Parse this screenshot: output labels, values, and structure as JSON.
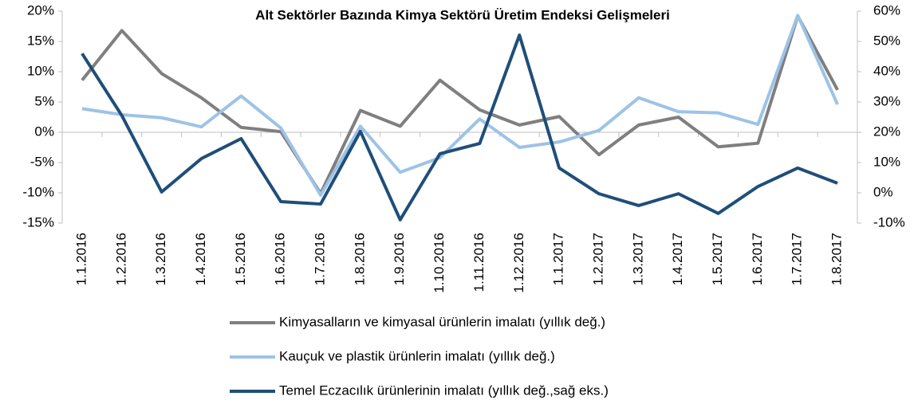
{
  "chart_data": {
    "type": "line",
    "title": "Alt Sektörler Bazında Kimya Sektörü Üretim Endeksi Gelişmeleri",
    "categories": [
      "1.1.2016",
      "1.2.2016",
      "1.3.2016",
      "1.4.2016",
      "1.5.2016",
      "1.6.2016",
      "1.7.2016",
      "1.8.2016",
      "1.9.2016",
      "1.10.2016",
      "1.11.2016",
      "1.12.2016",
      "1.1.2017",
      "1.2.2017",
      "1.3.2017",
      "1.4.2017",
      "1.5.2017",
      "1.6.2017",
      "1.7.2017",
      "1.8.2017"
    ],
    "series": [
      {
        "name": "Kimyasalların ve kimyasal ürünlerin imalatı (yıllık değ.)",
        "color": "#7f7f7f",
        "values": [
          8.6,
          16.8,
          9.7,
          5.7,
          0.8,
          0.1,
          -10.1,
          3.6,
          1.0,
          8.6,
          3.7,
          1.2,
          2.6,
          -3.7,
          1.2,
          2.5,
          -2.4,
          -1.8,
          19.2,
          7.0
        ]
      },
      {
        "name": "Kauçuk ve plastik ürünlerin imalatı (yıllık değ.)",
        "color": "#9dc3e6",
        "values": [
          3.9,
          2.9,
          2.4,
          0.9,
          6.0,
          0.7,
          -10.4,
          1.0,
          -6.6,
          -4.2,
          2.2,
          -2.5,
          -1.6,
          0.3,
          5.7,
          3.4,
          3.2,
          1.3,
          19.3,
          4.6
        ]
      },
      {
        "name": "Temel Eczacılık ürünlerinin imalatı (yıllık değ.,sağ eks.)",
        "color": "#1f4e79",
        "axis": "y2",
        "values": [
          46,
          25.5,
          0.3,
          11.3,
          17.9,
          -2.9,
          -3.7,
          20.3,
          -8.9,
          12.9,
          16.3,
          52.1,
          8.2,
          -0.3,
          -4.2,
          -0.3,
          -6.8,
          2.1,
          8.2,
          3.2
        ]
      }
    ],
    "ylim": [
      -15,
      20
    ],
    "yticks": [
      {
        "value": -15,
        "label": "-15%"
      },
      {
        "value": -10,
        "label": "-10%"
      },
      {
        "value": -5,
        "label": "-5%"
      },
      {
        "value": 0,
        "label": "0%"
      },
      {
        "value": 5,
        "label": "5%"
      },
      {
        "value": 10,
        "label": "10%"
      },
      {
        "value": 15,
        "label": "15%"
      },
      {
        "value": 20,
        "label": "20%"
      }
    ],
    "y2lim": [
      -10,
      60
    ],
    "y2ticks": [
      {
        "value": -10,
        "label": "-10%"
      },
      {
        "value": 0,
        "label": "0%"
      },
      {
        "value": 10,
        "label": "10%"
      },
      {
        "value": 20,
        "label": "20%"
      },
      {
        "value": 30,
        "label": "30%"
      },
      {
        "value": 40,
        "label": "40%"
      },
      {
        "value": 50,
        "label": "50%"
      },
      {
        "value": 60,
        "label": "60%"
      }
    ],
    "grid": false,
    "legend": "bottom"
  }
}
